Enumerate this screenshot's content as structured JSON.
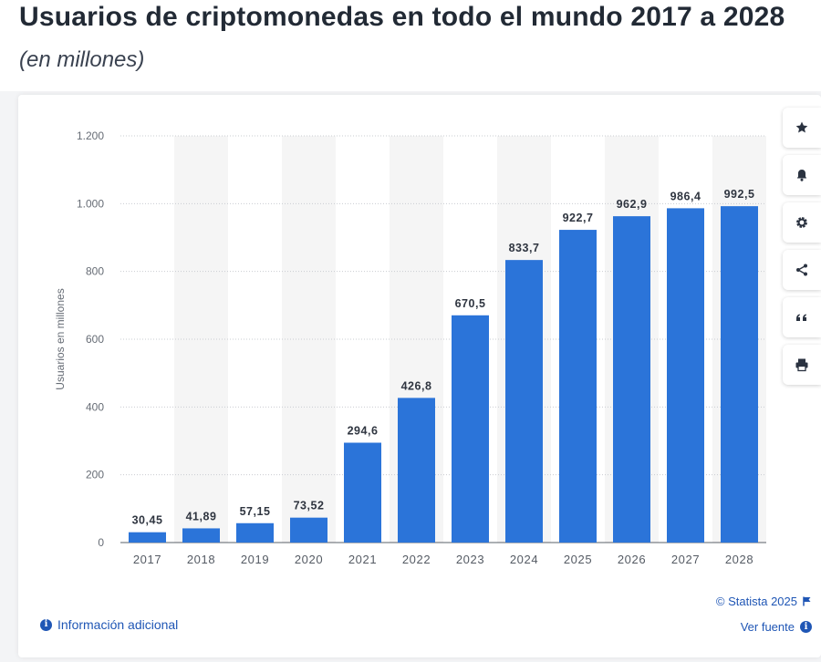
{
  "header": {
    "title": "Usuarios de criptomonedas en todo el mundo 2017 a 2028",
    "subtitle": "(en millones)"
  },
  "chart_data": {
    "type": "bar",
    "title": "Usuarios de criptomonedas en todo el mundo 2017 a 2028",
    "subtitle": "(en millones)",
    "xlabel": "",
    "ylabel": "Usuarios en millones",
    "categories": [
      "2017",
      "2018",
      "2019",
      "2020",
      "2021",
      "2022",
      "2023",
      "2024",
      "2025",
      "2026",
      "2027",
      "2028"
    ],
    "values": [
      30.45,
      41.89,
      57.15,
      73.52,
      294.6,
      426.8,
      670.5,
      833.7,
      922.7,
      962.9,
      986.4,
      992.5
    ],
    "value_labels": [
      "30,45",
      "41,89",
      "57,15",
      "73,52",
      "294,6",
      "426,8",
      "670,5",
      "833,7",
      "922,7",
      "962,9",
      "986,4",
      "992,5"
    ],
    "ylim": [
      0,
      1200
    ],
    "yticks": [
      0,
      200,
      400,
      600,
      800,
      1000,
      1200
    ],
    "ytick_labels": [
      "0",
      "200",
      "400",
      "600",
      "800",
      "1.000",
      "1.200"
    ],
    "grid": true,
    "bar_color": "#2b74d9"
  },
  "toolbar": {
    "buttons": [
      {
        "icon": "star-icon",
        "name": "favorite-button"
      },
      {
        "icon": "bell-icon",
        "name": "notify-button"
      },
      {
        "icon": "gear-icon",
        "name": "settings-button"
      },
      {
        "icon": "share-icon",
        "name": "share-button"
      },
      {
        "icon": "quote-icon",
        "name": "cite-button"
      },
      {
        "icon": "print-icon",
        "name": "print-button"
      }
    ]
  },
  "footer": {
    "info_label": "Información adicional",
    "copyright": "© Statista 2025",
    "source_label": "Ver fuente"
  },
  "colors": {
    "accent": "#1f56b5",
    "bar": "#2b74d9",
    "band": "#f5f5f5"
  }
}
